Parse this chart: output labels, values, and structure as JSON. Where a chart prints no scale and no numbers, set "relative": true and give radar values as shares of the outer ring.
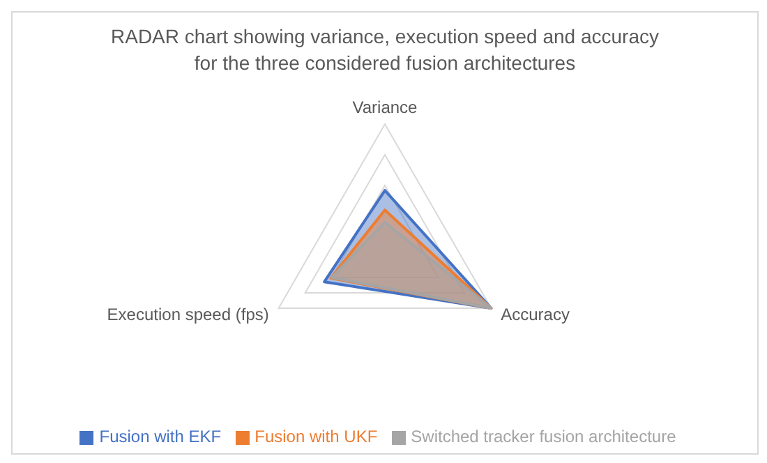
{
  "chart_data": {
    "type": "radar",
    "title": "RADAR chart showing variance, execution speed and accuracy for the three considered fusion architectures",
    "categories": [
      "Variance",
      "Accuracy",
      "Execution speed (fps)"
    ],
    "relative": true,
    "grid": true,
    "legend": "bottom",
    "series": [
      {
        "name": "Fusion with EKF",
        "color": "#4472c4",
        "values": [
          0.46,
          1,
          0.57
        ]
      },
      {
        "name": "Fusion with UKF",
        "color": "#ed7d31",
        "values": [
          0.3,
          1,
          0.51
        ]
      },
      {
        "name": "Switched tracker fusion architecture",
        "color": "#a5a5a5",
        "values": [
          0.2,
          1,
          0.5
        ]
      }
    ]
  }
}
